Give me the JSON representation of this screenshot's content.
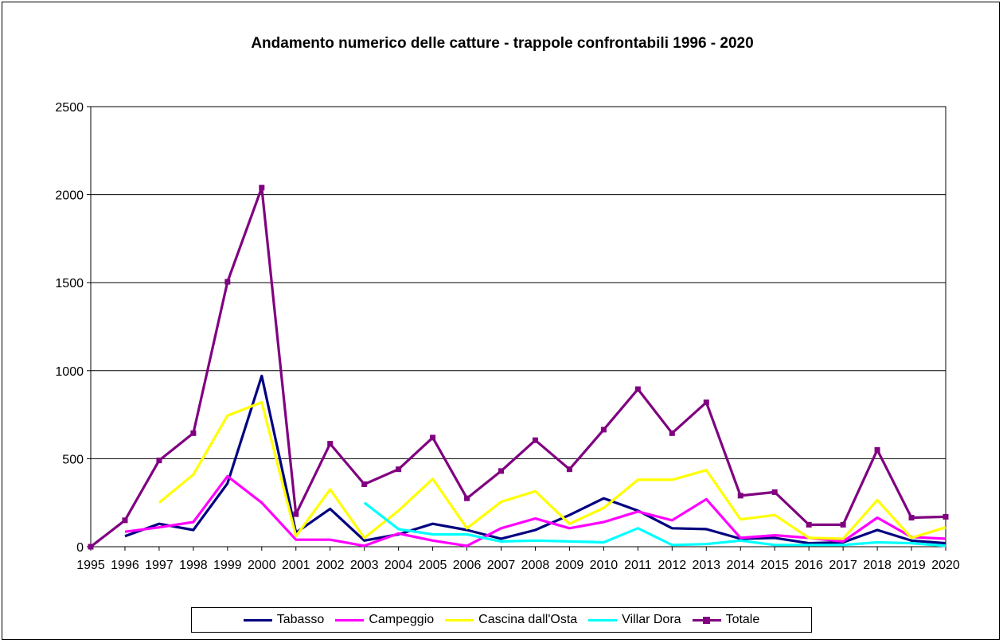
{
  "chart_data": {
    "type": "line",
    "title": "Andamento numerico delle catture - trappole confrontabili 1996 - 2020",
    "xlabel": "",
    "ylabel": "",
    "ylim": [
      0,
      2500
    ],
    "yticks": [
      "0",
      "500",
      "1000",
      "1500",
      "2000",
      "2500"
    ],
    "grid": true,
    "legend_position": "bottom",
    "categories": [
      "1995",
      "1996",
      "1997",
      "1998",
      "1999",
      "2000",
      "2001",
      "2002",
      "2003",
      "2004",
      "2005",
      "2006",
      "2007",
      "2008",
      "2009",
      "2010",
      "2011",
      "2012",
      "2013",
      "2014",
      "2015",
      "2016",
      "2017",
      "2018",
      "2019",
      "2020"
    ],
    "series": [
      {
        "name": "Tabasso",
        "color": "#000080",
        "marker": "none",
        "values": [
          null,
          60,
          130,
          95,
          360,
          970,
          80,
          215,
          35,
          70,
          130,
          95,
          45,
          95,
          180,
          275,
          205,
          105,
          100,
          45,
          50,
          20,
          25,
          95,
          35,
          20
        ]
      },
      {
        "name": "Campeggio",
        "color": "#ff00ff",
        "marker": "none",
        "values": [
          null,
          85,
          110,
          140,
          400,
          250,
          40,
          40,
          5,
          75,
          35,
          5,
          105,
          160,
          105,
          140,
          200,
          150,
          270,
          50,
          65,
          50,
          30,
          165,
          55,
          45
        ]
      },
      {
        "name": "Cascina dall'Osta",
        "color": "#ffff00",
        "marker": "none",
        "values": [
          null,
          null,
          250,
          410,
          745,
          820,
          60,
          325,
          50,
          205,
          385,
          105,
          255,
          315,
          130,
          220,
          380,
          380,
          435,
          155,
          180,
          50,
          45,
          265,
          50,
          110
        ]
      },
      {
        "name": "Villar Dora",
        "color": "#00ffff",
        "marker": "none",
        "values": [
          null,
          null,
          null,
          null,
          null,
          null,
          null,
          null,
          250,
          100,
          70,
          70,
          30,
          35,
          30,
          25,
          105,
          10,
          15,
          35,
          10,
          10,
          10,
          25,
          20,
          5
        ]
      },
      {
        "name": "Totale",
        "color": "#800080",
        "marker": "square",
        "values": [
          0,
          150,
          490,
          645,
          1505,
          2040,
          185,
          585,
          355,
          440,
          620,
          275,
          430,
          605,
          440,
          665,
          895,
          645,
          820,
          290,
          310,
          125,
          125,
          550,
          165,
          170
        ]
      }
    ]
  }
}
